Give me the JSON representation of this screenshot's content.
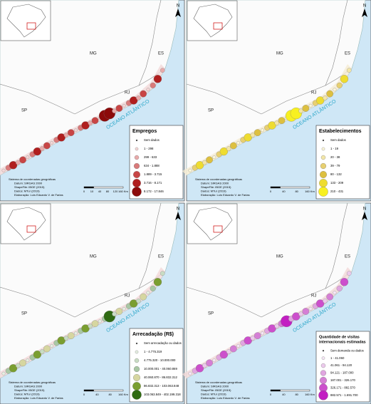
{
  "panels": [
    {
      "state_labels": [
        "MG",
        "ES",
        "RJ",
        "SP"
      ],
      "ocean_label": "OCEANO ATLÂNTICO",
      "north": "N",
      "legend": {
        "title": [
          "Empregos"
        ],
        "items": [
          {
            "label": "Sem dados",
            "color": "#222222"
          },
          {
            "label": "1 - 298",
            "color": "#f3d6d6"
          },
          {
            "label": "299 - 633",
            "color": "#e8aaaa"
          },
          {
            "label": "634 - 1.888",
            "color": "#d97a7a"
          },
          {
            "label": "1.889 - 3.715",
            "color": "#c84545"
          },
          {
            "label": "3.716 - 8.171",
            "color": "#b01e1e"
          },
          {
            "label": "8.172 - 17.846",
            "color": "#8c0a0a"
          }
        ]
      },
      "credits": [
        "Sistema de coordenadas geográficas",
        "Datum: SIRGAS 2000",
        "ShapeFile: IBGE (2015)",
        "Dados: MTur (2019)",
        "Elaboração: Luís Eduardo V. de Farias"
      ],
      "scale": [
        "0",
        "10",
        "40",
        "80",
        "120",
        "160 Km"
      ]
    },
    {
      "state_labels": [
        "MG",
        "ES",
        "RJ",
        "SP"
      ],
      "ocean_label": "OCEANO ATLÂNTICO",
      "north": "N",
      "legend": {
        "title": [
          "Estabelecimentos"
        ],
        "items": [
          {
            "label": "Sem dados",
            "color": "#222222"
          },
          {
            "label": "1 - 19",
            "color": "#fbf6d8"
          },
          {
            "label": "20 - 38",
            "color": "#f3e6a8"
          },
          {
            "label": "39 - 79",
            "color": "#e8d070"
          },
          {
            "label": "80 - 132",
            "color": "#ddc040"
          },
          {
            "label": "133 - 209",
            "color": "#eedc30"
          },
          {
            "label": "210 - 431",
            "color": "#f8f020"
          }
        ]
      },
      "credits": [
        "Sistema de coordenadas geográficas",
        "Datum: SIRGAS 2000",
        "ShapeFile: IBGE (2015)",
        "Dados: MTur (2019)",
        "Elaboração: Luís Eduardo V. de Farias"
      ],
      "scale": [
        "0",
        "40",
        "80",
        "160 Km"
      ]
    },
    {
      "state_labels": [
        "MG",
        "ES",
        "RJ",
        "SP"
      ],
      "ocean_label": "OCEANO ATLÂNTICO",
      "north": "N",
      "legend": {
        "title": [
          "Arrecadação (R$)"
        ],
        "items": [
          {
            "label": "Sem arrecadação ou dados",
            "color": "#222222"
          },
          {
            "label": "1 - 4.775.319",
            "color": "#e6efe2"
          },
          {
            "label": "4.775.320 - 10.000.000",
            "color": "#c9dcc4"
          },
          {
            "label": "10.000.001 - 40.060.869",
            "color": "#a9c7a4"
          },
          {
            "label": "40.060.870 - 86.832.312",
            "color": "#d6d6a0"
          },
          {
            "label": "86.832.313 - 103.063.848",
            "color": "#7a9e30"
          },
          {
            "label": "103.063.849 - 402.199.318",
            "color": "#2f6a12"
          }
        ]
      },
      "credits": [
        "Sistema de coordenadas geográficas",
        "Datum: SIRGAS 2000",
        "ShapeFile: IBGE (2015)",
        "Dados: MTur (2019)",
        "Elaboração: Luís Eduardo V. de Farias"
      ],
      "scale": [
        "0",
        "40",
        "80",
        "160 Km"
      ]
    },
    {
      "state_labels": [
        "MG",
        "ES",
        "RJ",
        "SP"
      ],
      "ocean_label": "OCEANO ATLÂNTICO",
      "north": "N",
      "legend": {
        "title": [
          "Quantidade de visitas",
          "internacionais estimadas"
        ],
        "items": [
          {
            "label": "Sem demanda ou dados",
            "color": "#222222"
          },
          {
            "label": "1 - 41.060",
            "color": "#f6e6f6"
          },
          {
            "label": "41.061 - 94.120",
            "color": "#eccaec"
          },
          {
            "label": "94.121 - 187.000",
            "color": "#e0a6e0"
          },
          {
            "label": "187.001 - 326.170",
            "color": "#d57fd5"
          },
          {
            "label": "326.171 - 882.570",
            "color": "#cc4fcc"
          },
          {
            "label": "882.571 - 1.691.700",
            "color": "#c21fc2"
          }
        ]
      },
      "credits": [
        "Sistema de coordenadas geográficas",
        "Datum: SIRGAS 2000",
        "ShapeFile: IBGE (2015)",
        "Dados: MTur (2019)",
        "Elaboração: Luís Eduardo V. de Farias"
      ],
      "scale": [
        "0",
        "40",
        "80",
        "160 Km"
      ]
    }
  ]
}
